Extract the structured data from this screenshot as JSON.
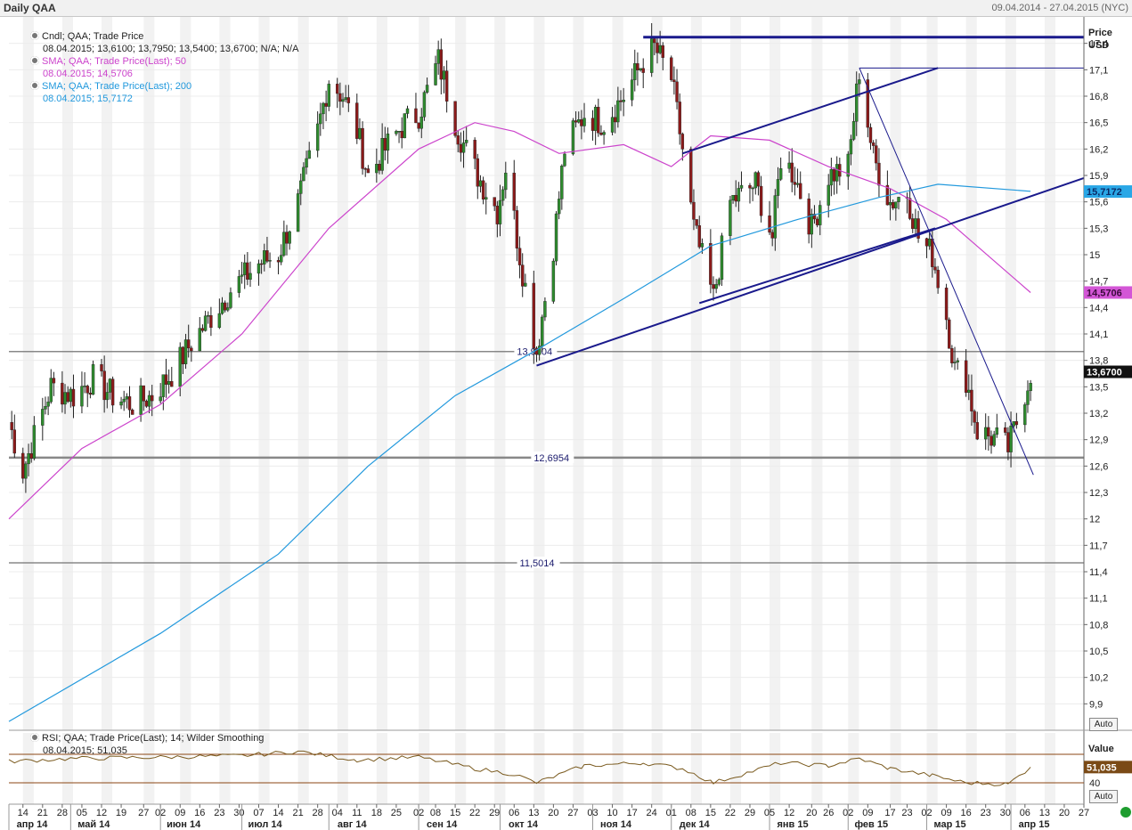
{
  "window": {
    "title": "Daily QAA",
    "date_range": "09.04.2014 - 27.04.2015 (NYC)"
  },
  "legend": {
    "cndl_name": "Cndl; QAA; Trade Price",
    "cndl_values": "08.04.2015; 13,6100; 13,7950; 13,5400; 13,6700; N/A; N/A",
    "sma50_name": "SMA; QAA; Trade Price(Last); 50",
    "sma50_value": "08.04.2015; 14,5706",
    "sma200_name": "SMA; QAA; Trade Price(Last); 200",
    "sma200_value": "08.04.2015; 15,7172"
  },
  "rsi_legend": {
    "name": "RSI; QAA; Trade Price(Last); 14; Wilder Smoothing",
    "value": "08.04.2015; 51,035"
  },
  "axis": {
    "title_line1": "Price",
    "title_line2": "USD",
    "auto_label": "Auto",
    "rsi_title": "Value",
    "rsi_auto_label": "Auto"
  },
  "colors": {
    "sma50": "#cc44cc",
    "sma200": "#2299dd",
    "trend": "#1a1a8c",
    "up": "#2e8b2e",
    "down": "#8b1a1a",
    "rsi": "#7a5a1e"
  },
  "chart_data": {
    "type": "candlestick",
    "x_range": [
      "2014-04-09",
      "2015-04-27"
    ],
    "y_range": [
      9.6,
      17.7
    ],
    "y_ticks": [
      "17,4",
      "17,1",
      "16,8",
      "16,5",
      "16,2",
      "15,9",
      "15,6",
      "15,3",
      "15",
      "14,7",
      "14,4",
      "14,1",
      "13,8",
      "13,5",
      "13,2",
      "12,9",
      "12,6",
      "12,3",
      "12",
      "11,7",
      "11,4",
      "11,1",
      "10,8",
      "10,5",
      "10,2",
      "9,9"
    ],
    "y_tick_values": [
      17.4,
      17.1,
      16.8,
      16.5,
      16.2,
      15.9,
      15.6,
      15.3,
      15.0,
      14.7,
      14.4,
      14.1,
      13.8,
      13.5,
      13.2,
      12.9,
      12.6,
      12.3,
      12.0,
      11.7,
      11.4,
      11.1,
      10.8,
      10.5,
      10.2,
      9.9
    ],
    "x_day_labels": [
      "14",
      "21",
      "28",
      "05",
      "12",
      "19",
      "27",
      "02",
      "09",
      "16",
      "23",
      "30",
      "07",
      "14",
      "21",
      "28",
      "04",
      "11",
      "18",
      "25",
      "02",
      "08",
      "15",
      "22",
      "29",
      "06",
      "13",
      "20",
      "27",
      "03",
      "10",
      "17",
      "24",
      "01",
      "08",
      "15",
      "22",
      "29",
      "05",
      "12",
      "20",
      "26",
      "02",
      "09",
      "17",
      "23",
      "02",
      "09",
      "16",
      "23",
      "30",
      "06",
      "13",
      "20",
      "27"
    ],
    "x_day_dates": [
      "2014-04-14",
      "2014-04-21",
      "2014-04-28",
      "2014-05-05",
      "2014-05-12",
      "2014-05-19",
      "2014-05-27",
      "2014-06-02",
      "2014-06-09",
      "2014-06-16",
      "2014-06-23",
      "2014-06-30",
      "2014-07-07",
      "2014-07-14",
      "2014-07-21",
      "2014-07-28",
      "2014-08-04",
      "2014-08-11",
      "2014-08-18",
      "2014-08-25",
      "2014-09-02",
      "2014-09-08",
      "2014-09-15",
      "2014-09-22",
      "2014-09-29",
      "2014-10-06",
      "2014-10-13",
      "2014-10-20",
      "2014-10-27",
      "2014-11-03",
      "2014-11-10",
      "2014-11-17",
      "2014-11-24",
      "2014-12-01",
      "2014-12-08",
      "2014-12-15",
      "2014-12-22",
      "2014-12-29",
      "2015-01-05",
      "2015-01-12",
      "2015-01-20",
      "2015-01-26",
      "2015-02-02",
      "2015-02-09",
      "2015-02-17",
      "2015-02-23",
      "2015-03-02",
      "2015-03-09",
      "2015-03-16",
      "2015-03-23",
      "2015-03-30",
      "2015-04-06",
      "2015-04-13",
      "2015-04-20",
      "2015-04-27"
    ],
    "x_month_labels": [
      "апр 14",
      "май 14",
      "июн 14",
      "июл 14",
      "авг 14",
      "сен 14",
      "окт 14",
      "ноя 14",
      "дек 14",
      "янв 15",
      "фев 15",
      "мар 15",
      "апр 15"
    ],
    "x_month_dates": [
      "2014-04-09",
      "2014-05-01",
      "2014-06-02",
      "2014-07-01",
      "2014-08-01",
      "2014-09-02",
      "2014-10-01",
      "2014-11-03",
      "2014-12-01",
      "2015-01-05",
      "2015-02-02",
      "2015-03-02",
      "2015-04-01"
    ],
    "horizontal_levels": [
      {
        "value": 13.9004,
        "label": "13,9004",
        "label_date": "2014-10-07"
      },
      {
        "value": 12.6954,
        "label": "12,6954",
        "label_date": "2014-10-13"
      },
      {
        "value": 11.5014,
        "label": "11,5014",
        "label_date": "2014-10-08"
      }
    ],
    "last_price_label": "13,6700",
    "sma50_label": "14,5706",
    "sma200_label": "15,7172",
    "trendlines": [
      {
        "from": [
          "2014-11-21",
          17.47
        ],
        "to": [
          "2015-04-27",
          17.47
        ],
        "width": 3
      },
      {
        "from": [
          "2015-02-06",
          17.12
        ],
        "to": [
          "2015-04-27",
          17.12
        ],
        "width": 1
      },
      {
        "from": [
          "2014-10-14",
          13.74
        ],
        "to": [
          "2015-04-27",
          15.87
        ],
        "width": 2
      },
      {
        "from": [
          "2014-12-11",
          14.45
        ],
        "to": [
          "2015-03-05",
          15.3
        ],
        "width": 2
      },
      {
        "from": [
          "2014-12-05",
          16.15
        ],
        "to": [
          "2015-03-06",
          17.12
        ],
        "width": 2
      },
      {
        "from": [
          "2015-02-06",
          17.12
        ],
        "to": [
          "2015-04-09",
          12.5
        ],
        "width": 1
      }
    ],
    "anchors": [
      [
        "2014-04-09",
        13.1
      ],
      [
        "2014-04-14",
        12.55
      ],
      [
        "2014-04-24",
        13.5
      ],
      [
        "2014-05-02",
        13.4
      ],
      [
        "2014-05-09",
        13.6
      ],
      [
        "2014-05-16",
        13.4
      ],
      [
        "2014-05-23",
        13.3
      ],
      [
        "2014-05-30",
        13.4
      ],
      [
        "2014-06-06",
        13.65
      ],
      [
        "2014-06-13",
        14.0
      ],
      [
        "2014-06-20",
        14.3
      ],
      [
        "2014-06-27",
        14.6
      ],
      [
        "2014-07-07",
        14.9
      ],
      [
        "2014-07-14",
        15.0
      ],
      [
        "2014-07-21",
        15.6
      ],
      [
        "2014-07-28",
        16.4
      ],
      [
        "2014-08-01",
        17.0
      ],
      [
        "2014-08-06",
        16.8
      ],
      [
        "2014-08-11",
        16.4
      ],
      [
        "2014-08-15",
        15.9
      ],
      [
        "2014-08-21",
        16.2
      ],
      [
        "2014-08-28",
        16.5
      ],
      [
        "2014-09-02",
        16.6
      ],
      [
        "2014-09-09",
        17.2
      ],
      [
        "2014-09-16",
        16.4
      ],
      [
        "2014-09-23",
        15.9
      ],
      [
        "2014-09-30",
        15.5
      ],
      [
        "2014-10-03",
        16.0
      ],
      [
        "2014-10-08",
        15.0
      ],
      [
        "2014-10-14",
        13.9
      ],
      [
        "2014-10-20",
        15.1
      ],
      [
        "2014-10-24",
        16.2
      ],
      [
        "2014-10-31",
        16.6
      ],
      [
        "2014-11-07",
        16.5
      ],
      [
        "2014-11-14",
        16.8
      ],
      [
        "2014-11-21",
        17.2
      ],
      [
        "2014-11-25",
        17.35
      ],
      [
        "2014-12-01",
        17.0
      ],
      [
        "2014-12-05",
        16.2
      ],
      [
        "2014-12-09",
        15.3
      ],
      [
        "2014-12-16",
        14.5
      ],
      [
        "2014-12-22",
        15.6
      ],
      [
        "2014-12-31",
        15.8
      ],
      [
        "2015-01-06",
        15.2
      ],
      [
        "2015-01-09",
        16.1
      ],
      [
        "2015-01-14",
        15.9
      ],
      [
        "2015-01-20",
        15.3
      ],
      [
        "2015-01-26",
        15.9
      ],
      [
        "2015-02-02",
        16.0
      ],
      [
        "2015-02-06",
        17.1
      ],
      [
        "2015-02-11",
        16.1
      ],
      [
        "2015-02-17",
        15.6
      ],
      [
        "2015-02-23",
        15.7
      ],
      [
        "2015-02-27",
        15.2
      ],
      [
        "2015-03-04",
        15.0
      ],
      [
        "2015-03-09",
        14.3
      ],
      [
        "2015-03-12",
        13.7
      ],
      [
        "2015-03-16",
        13.6
      ],
      [
        "2015-03-20",
        13.0
      ],
      [
        "2015-03-27",
        12.9
      ],
      [
        "2015-03-31",
        12.8
      ],
      [
        "2015-04-03",
        13.1
      ],
      [
        "2015-04-08",
        13.67
      ]
    ],
    "sma50": [
      [
        "2014-04-09",
        12.0
      ],
      [
        "2014-05-05",
        12.8
      ],
      [
        "2014-06-02",
        13.3
      ],
      [
        "2014-07-01",
        14.1
      ],
      [
        "2014-08-01",
        15.3
      ],
      [
        "2014-09-02",
        16.2
      ],
      [
        "2014-09-22",
        16.5
      ],
      [
        "2014-10-06",
        16.4
      ],
      [
        "2014-10-22",
        16.15
      ],
      [
        "2014-11-14",
        16.25
      ],
      [
        "2014-12-01",
        16.0
      ],
      [
        "2014-12-15",
        16.35
      ],
      [
        "2015-01-05",
        16.3
      ],
      [
        "2015-01-26",
        16.0
      ],
      [
        "2015-02-17",
        15.75
      ],
      [
        "2015-03-09",
        15.4
      ],
      [
        "2015-04-08",
        14.57
      ]
    ],
    "sma200": [
      [
        "2014-04-09",
        9.7
      ],
      [
        "2014-06-02",
        10.7
      ],
      [
        "2014-07-14",
        11.6
      ],
      [
        "2014-08-15",
        12.6
      ],
      [
        "2014-09-15",
        13.4
      ],
      [
        "2014-10-13",
        13.9
      ],
      [
        "2014-11-14",
        14.5
      ],
      [
        "2014-12-15",
        15.1
      ],
      [
        "2015-01-15",
        15.4
      ],
      [
        "2015-02-13",
        15.65
      ],
      [
        "2015-03-06",
        15.8
      ],
      [
        "2015-04-08",
        15.72
      ]
    ],
    "rsi": {
      "range": [
        25,
        75
      ],
      "levels": [
        60,
        40
      ],
      "level_label": "40",
      "values": [
        [
          "2014-04-09",
          55
        ],
        [
          "2014-05-01",
          57
        ],
        [
          "2014-06-02",
          58
        ],
        [
          "2014-07-01",
          59
        ],
        [
          "2014-07-21",
          62
        ],
        [
          "2014-08-11",
          56
        ],
        [
          "2014-09-02",
          58
        ],
        [
          "2014-09-22",
          50
        ],
        [
          "2014-10-06",
          46
        ],
        [
          "2014-10-14",
          40
        ],
        [
          "2014-10-31",
          52
        ],
        [
          "2014-11-21",
          54
        ],
        [
          "2014-12-05",
          50
        ],
        [
          "2014-12-16",
          40
        ],
        [
          "2015-01-09",
          54
        ],
        [
          "2015-01-26",
          52
        ],
        [
          "2015-02-06",
          57
        ],
        [
          "2015-02-17",
          50
        ],
        [
          "2015-03-04",
          45
        ],
        [
          "2015-03-16",
          40
        ],
        [
          "2015-03-31",
          39
        ],
        [
          "2015-04-08",
          51
        ]
      ]
    }
  }
}
